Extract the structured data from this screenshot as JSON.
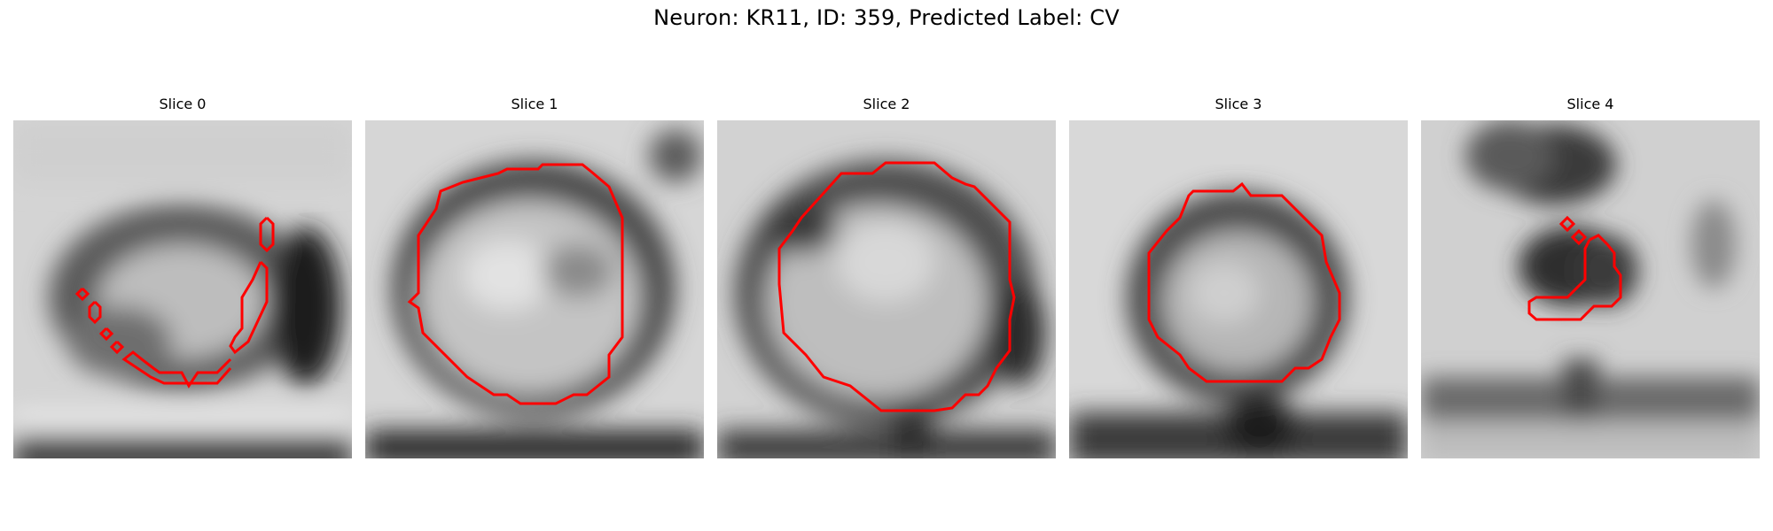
{
  "figure": {
    "title": "Neuron: KR11, ID: 359, Predicted Label: CV",
    "panels": [
      {
        "title": "Slice 0",
        "image": "grayscale-em-crop-cell-membrane",
        "contour_color": "#ff0000"
      },
      {
        "title": "Slice 1",
        "image": "grayscale-em-crop-cell-membrane",
        "contour_color": "#ff0000"
      },
      {
        "title": "Slice 2",
        "image": "grayscale-em-crop-cell-membrane",
        "contour_color": "#ff0000"
      },
      {
        "title": "Slice 3",
        "image": "grayscale-em-crop-cell-membrane",
        "contour_color": "#ff0000"
      },
      {
        "title": "Slice 4",
        "image": "grayscale-em-crop-cell-membrane",
        "contour_color": "#ff0000"
      }
    ]
  }
}
